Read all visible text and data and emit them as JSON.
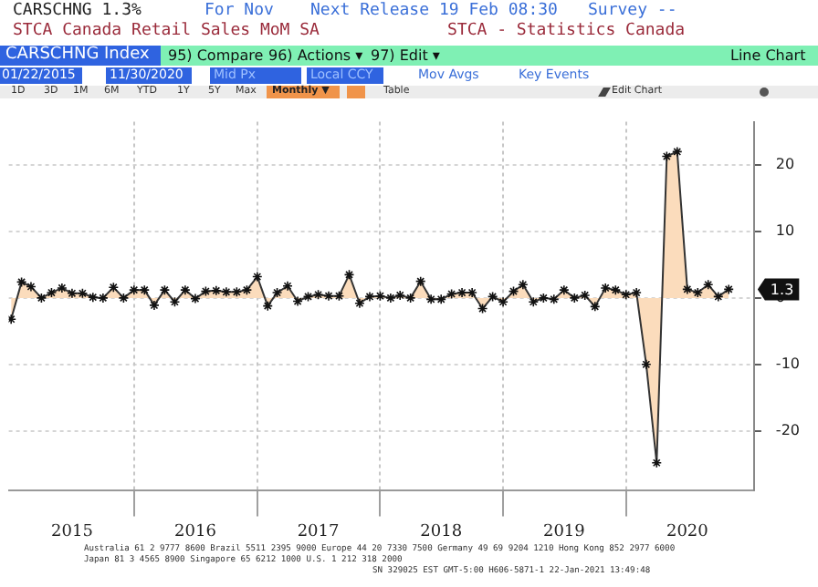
{
  "chart_data": {
    "type": "area",
    "title": "STCA Canada Retail Sales MoM SA",
    "x": [
      "2015-01",
      "2015-02",
      "2015-03",
      "2015-04",
      "2015-05",
      "2015-06",
      "2015-07",
      "2015-08",
      "2015-09",
      "2015-10",
      "2015-11",
      "2015-12",
      "2016-01",
      "2016-02",
      "2016-03",
      "2016-04",
      "2016-05",
      "2016-06",
      "2016-07",
      "2016-08",
      "2016-09",
      "2016-10",
      "2016-11",
      "2016-12",
      "2017-01",
      "2017-02",
      "2017-03",
      "2017-04",
      "2017-05",
      "2017-06",
      "2017-07",
      "2017-08",
      "2017-09",
      "2017-10",
      "2017-11",
      "2017-12",
      "2018-01",
      "2018-02",
      "2018-03",
      "2018-04",
      "2018-05",
      "2018-06",
      "2018-07",
      "2018-08",
      "2018-09",
      "2018-10",
      "2018-11",
      "2018-12",
      "2019-01",
      "2019-02",
      "2019-03",
      "2019-04",
      "2019-05",
      "2019-06",
      "2019-07",
      "2019-08",
      "2019-09",
      "2019-10",
      "2019-11",
      "2019-12",
      "2020-01",
      "2020-02",
      "2020-03",
      "2020-04",
      "2020-05",
      "2020-06",
      "2020-07",
      "2020-08",
      "2020-09",
      "2020-10",
      "2020-11"
    ],
    "series": [
      {
        "color": "#fbdcbc",
        "values": [
          -3.2,
          2.4,
          1.7,
          0.0,
          0.8,
          1.5,
          0.7,
          0.7,
          0.1,
          0.0,
          1.6,
          0.0,
          1.2,
          1.2,
          -1.1,
          1.2,
          -0.6,
          1.2,
          -0.1,
          1.0,
          1.1,
          0.9,
          0.9,
          1.2,
          3.2,
          -1.2,
          0.8,
          1.8,
          -0.5,
          0.2,
          0.5,
          0.3,
          0.3,
          3.5,
          -0.8,
          0.2,
          0.3,
          0.0,
          0.4,
          0.0,
          2.5,
          -0.2,
          -0.2,
          0.6,
          0.8,
          0.8,
          -1.6,
          0.2,
          -0.6,
          1.0,
          2.0,
          -0.6,
          0.0,
          -0.2,
          1.2,
          0.0,
          0.4,
          -1.3,
          1.5,
          1.2,
          0.5,
          0.8,
          -10.0,
          -24.8,
          21.3,
          22.0,
          1.3,
          0.8,
          2.0,
          0.2,
          1.3
        ]
      }
    ],
    "xlim": [
      "2014-12-25",
      "2021-01-15"
    ],
    "xticks": [
      {
        "value": "2015-07",
        "label": "2015"
      },
      {
        "value": "2016-01",
        "label": null
      },
      {
        "value": "2016-07",
        "label": "2016"
      },
      {
        "value": "2017-01",
        "label": null
      },
      {
        "value": "2017-07",
        "label": "2017"
      },
      {
        "value": "2018-01",
        "label": null
      },
      {
        "value": "2018-07",
        "label": "2018"
      },
      {
        "value": "2019-01",
        "label": null
      },
      {
        "value": "2019-07",
        "label": "2019"
      },
      {
        "value": "2020-01",
        "label": null
      },
      {
        "value": "2020-07",
        "label": "2020"
      }
    ],
    "ylim": [
      -29,
      26.5
    ],
    "yticks": [
      -20,
      -10,
      0,
      10,
      20
    ],
    "grid": true,
    "legend": false,
    "marker": "cross",
    "line_style": "solid",
    "annotations": [
      "CARSCHNG 1.3%",
      "For Nov",
      "Next Release 19 Feb 08:30",
      "Survey --",
      "STCA - Statistics Canada",
      "CARSCHNG Index",
      "95) Compare",
      "96) Actions ▾",
      "97) Edit ▾",
      "Line Chart",
      "01/22/2015",
      "11/30/2020",
      "Mid Px",
      "Local CCY",
      "Mov Avgs",
      "Key Events",
      "1D",
      "3D",
      "1M",
      "6M",
      "YTD",
      "1Y",
      "5Y",
      "Max",
      "Monthly ▼",
      "Table",
      "Edit Chart",
      {
        "text": "1.3",
        "x": "2020-11",
        "y": 1.3
      },
      "Australia 61 2 9777 8600 Brazil 5511 2395 9000 Europe 44 20 7330 7500 Germany 49 69 9204 1210 Hong Kong 852 2977 6000",
      "Japan 81 3 4565 8900 Singapore 65 6212 1000 U.S. 1 212 318 2000",
      "SN 329025 EST GMT-5:00 H606-5871-1 22-Jan-2021 13:49:48"
    ]
  }
}
